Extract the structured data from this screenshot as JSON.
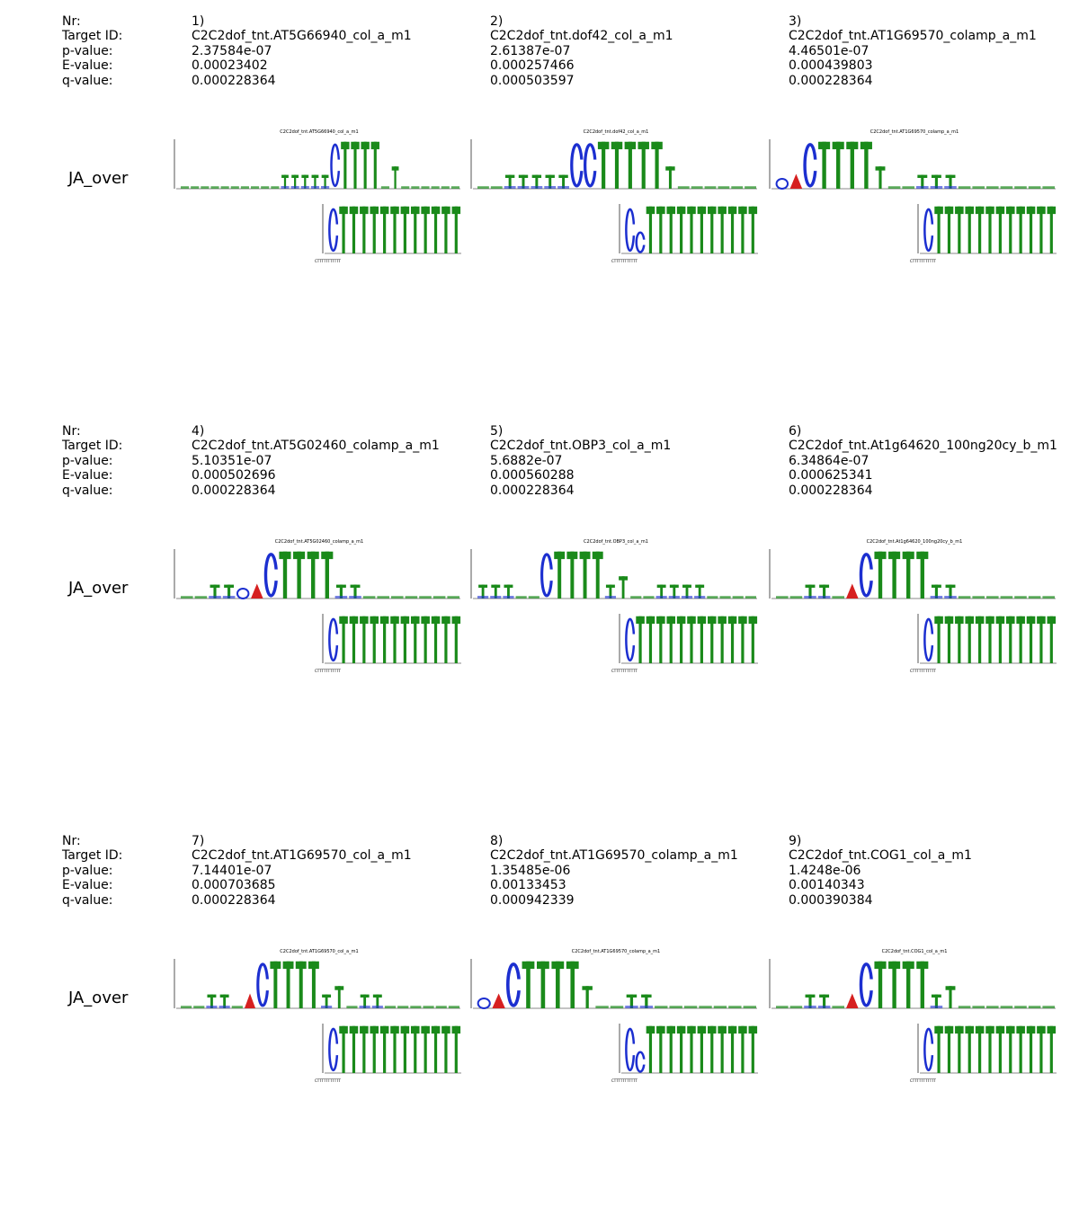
{
  "field_labels": {
    "nr": "Nr:",
    "target": "Target ID:",
    "p": "p-value:",
    "e": "E-value:",
    "q": "q-value:"
  },
  "rows": [
    {
      "row_label": "JA_over",
      "entries": [
        {
          "nr": "1)",
          "target": "C2C2dof_tnt.AT5G66940_col_a_m1",
          "p": "2.37584e-07",
          "e": "0.00023402",
          "q": "0.000228364",
          "logo_title": "C2C2dof_tnt.AT5G66940_col_a_m1",
          "consensus": "CTTTTTTTTTTT",
          "top_pattern": "bbbbbbbbbbmmmmmCTTTTbsbbbbbb",
          "bottom_pattern": "CTTTTTTTTTTTT"
        },
        {
          "nr": "2)",
          "target": "C2C2dof_tnt.dof42_col_a_m1",
          "p": "2.61387e-07",
          "e": "0.000257466",
          "q": "0.000503597",
          "logo_title": "C2C2dof_tnt.dof42_col_a_m1",
          "consensus": "CTTTTTTTTTTT",
          "top_pattern": "bbmmmmmCCTTTTTsbbbbbb",
          "bottom_pattern": "CcTTTTTTTTTTT"
        },
        {
          "nr": "3)",
          "target": "C2C2dof_tnt.AT1G69570_colamp_a_m1",
          "p": "4.46501e-07",
          "e": "0.000439803",
          "q": "0.000228364",
          "logo_title": "C2C2dof_tnt.AT1G69570_colamp_a_m1",
          "consensus": "CTTTTTTTTTTT",
          "top_pattern": "GACTTTTsbbmmmbbbbbbb",
          "bottom_pattern": "CTTTTTTTTTTTT"
        }
      ]
    },
    {
      "row_label": "JA_over",
      "entries": [
        {
          "nr": "4)",
          "target": "C2C2dof_tnt.AT5G02460_colamp_a_m1",
          "p": "5.10351e-07",
          "e": "0.000502696",
          "q": "0.000228364",
          "logo_title": "C2C2dof_tnt.AT5G02460_colamp_a_m1",
          "consensus": "CTTTTTTTTTTT",
          "top_pattern": "bbmmGACTTTTmmbbbbbbb",
          "bottom_pattern": "CTTTTTTTTTTTT"
        },
        {
          "nr": "5)",
          "target": "C2C2dof_tnt.OBP3_col_a_m1",
          "p": "5.6882e-07",
          "e": "0.000560288",
          "q": "0.000228364",
          "logo_title": "C2C2dof_tnt.OBP3_col_a_m1",
          "consensus": "CTTTTTTTTTTT",
          "top_pattern": "mmmbbCTTTTmsbbmmmmbbbb",
          "bottom_pattern": "CTTTTTTTTTTTT"
        },
        {
          "nr": "6)",
          "target": "C2C2dof_tnt.At1g64620_100ng20cy_b_m1",
          "p": "6.34864e-07",
          "e": "0.000625341",
          "q": "0.000228364",
          "logo_title": "C2C2dof_tnt.At1g64620_100ng20cy_b_m1",
          "consensus": "CTTTTTTTTTTT",
          "top_pattern": "bbmmbACTTTTmmbbbbbbb",
          "bottom_pattern": "CTTTTTTTTTTTT"
        }
      ]
    },
    {
      "row_label": "JA_over",
      "entries": [
        {
          "nr": "7)",
          "target": "C2C2dof_tnt.AT1G69570_col_a_m1",
          "p": "7.14401e-07",
          "e": "0.000703685",
          "q": "0.000228364",
          "logo_title": "C2C2dof_tnt.AT1G69570_col_a_m1",
          "consensus": "CTTTTTTTTTTT",
          "top_pattern": "bbmmbACTTTTmsbmmbbbbbb",
          "bottom_pattern": "CTTTTTTTTTTTT"
        },
        {
          "nr": "8)",
          "target": "C2C2dof_tnt.AT1G69570_colamp_a_m1",
          "p": "1.35485e-06",
          "e": "0.00133453",
          "q": "0.000942339",
          "logo_title": "C2C2dof_tnt.AT1G69570_colamp_a_m1",
          "consensus": "CTTTTTTTTTTT",
          "top_pattern": "GACTTTTsbbmmbbbbbbb",
          "bottom_pattern": "CcTTTTTTTTTTT"
        },
        {
          "nr": "9)",
          "target": "C2C2dof_tnt.COG1_col_a_m1",
          "p": "1.4248e-06",
          "e": "0.00140343",
          "q": "0.000390384",
          "logo_title": "C2C2dof_tnt.COG1_col_a_m1",
          "consensus": "CTTTTTTTTTTT",
          "top_pattern": "bbmmbACTTTTmsbbbbbbb",
          "bottom_pattern": "CTTTTTTTTTTTT"
        }
      ]
    }
  ],
  "logo_colors": {
    "T": "#1a8a1a",
    "C": "#1c2fd0",
    "A": "#d62020",
    "G": "#e89a10"
  }
}
